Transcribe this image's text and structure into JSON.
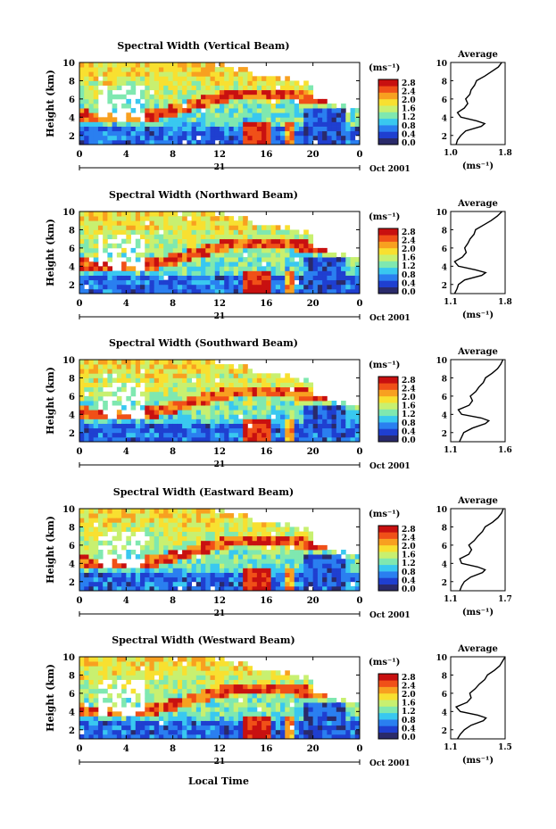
{
  "figure": {
    "xlabel": "Local Time",
    "date_label": "Oct 2001",
    "day_label": "21",
    "ylabel": "Height (km)",
    "colorbar_unit": "(ms⁻¹)",
    "avg_title": "Average",
    "avg_unit": "(ms⁻¹)",
    "x_ticks": [
      "0",
      "4",
      "8",
      "12",
      "16",
      "20",
      "0"
    ],
    "y_ticks": [
      "2",
      "4",
      "6",
      "8",
      "10"
    ],
    "colorbar_ticks": [
      "0.0",
      "0.4",
      "0.8",
      "1.2",
      "1.6",
      "2.0",
      "2.4",
      "2.8"
    ],
    "colorscale": [
      "#2a2a6a",
      "#1f3fd0",
      "#2a7ff0",
      "#39c8f0",
      "#7fe8b0",
      "#c8f070",
      "#f8e030",
      "#f8a020",
      "#f05018",
      "#c81010"
    ]
  },
  "chart_data": [
    {
      "type": "heatmap",
      "title": "Spectral Width (Vertical Beam)",
      "xlabel": "Local Time",
      "ylabel": "Height (km)",
      "xlim": [
        0,
        24
      ],
      "ylim": [
        1,
        10
      ],
      "clim": [
        0.0,
        2.8
      ],
      "profile": {
        "title": "Average",
        "xlabel": "(ms⁻¹)",
        "xlim": [
          1.0,
          1.8
        ],
        "x_ticks": [
          "1.0",
          "1.8"
        ],
        "height_km": [
          1.0,
          1.5,
          2.0,
          2.5,
          3.0,
          3.3,
          3.6,
          4.0,
          4.5,
          5.0,
          5.5,
          6.0,
          6.5,
          7.0,
          7.5,
          8.0,
          8.5,
          9.0,
          9.5,
          10.0
        ],
        "values": [
          1.08,
          1.1,
          1.15,
          1.22,
          1.45,
          1.5,
          1.38,
          1.15,
          1.1,
          1.2,
          1.25,
          1.22,
          1.28,
          1.3,
          1.35,
          1.38,
          1.5,
          1.6,
          1.7,
          1.75
        ]
      }
    },
    {
      "type": "heatmap",
      "title": "Spectral Width (Northward Beam)",
      "xlabel": "Local Time",
      "ylabel": "Height (km)",
      "xlim": [
        0,
        24
      ],
      "ylim": [
        1,
        10
      ],
      "clim": [
        0.0,
        2.8
      ],
      "profile": {
        "title": "Average",
        "xlabel": "(ms⁻¹)",
        "xlim": [
          1.1,
          1.8
        ],
        "x_ticks": [
          "1.1",
          "1.8"
        ],
        "height_km": [
          1.0,
          1.5,
          2.0,
          2.5,
          3.0,
          3.3,
          3.6,
          4.0,
          4.5,
          5.0,
          5.5,
          6.0,
          6.5,
          7.0,
          7.5,
          8.0,
          8.5,
          9.0,
          9.5,
          10.0
        ],
        "values": [
          1.15,
          1.18,
          1.2,
          1.28,
          1.5,
          1.55,
          1.42,
          1.2,
          1.15,
          1.25,
          1.3,
          1.28,
          1.32,
          1.35,
          1.4,
          1.42,
          1.52,
          1.62,
          1.7,
          1.76
        ]
      }
    },
    {
      "type": "heatmap",
      "title": "Spectral Width (Southward Beam)",
      "xlabel": "Local Time",
      "ylabel": "Height (km)",
      "xlim": [
        0,
        24
      ],
      "ylim": [
        1,
        10
      ],
      "clim": [
        0.0,
        2.8
      ],
      "profile": {
        "title": "Average",
        "xlabel": "",
        "xlim": [
          1.1,
          1.6
        ],
        "x_ticks": [
          "1.1",
          "1.6"
        ],
        "height_km": [
          1.0,
          1.5,
          2.0,
          2.5,
          3.0,
          3.3,
          3.6,
          4.0,
          4.5,
          5.0,
          5.5,
          6.0,
          6.5,
          7.0,
          7.5,
          8.0,
          8.5,
          9.0,
          9.5,
          10.0
        ],
        "values": [
          1.18,
          1.2,
          1.22,
          1.3,
          1.42,
          1.45,
          1.38,
          1.2,
          1.17,
          1.27,
          1.3,
          1.28,
          1.33,
          1.36,
          1.4,
          1.42,
          1.48,
          1.53,
          1.56,
          1.58
        ]
      }
    },
    {
      "type": "heatmap",
      "title": "Spectral Width (Eastward Beam)",
      "xlabel": "Local Time",
      "ylabel": "Height (km)",
      "xlim": [
        0,
        24
      ],
      "ylim": [
        1,
        10
      ],
      "clim": [
        0.0,
        2.8
      ],
      "profile": {
        "title": "Average",
        "xlabel": "(ms⁻¹)",
        "xlim": [
          1.1,
          1.7
        ],
        "x_ticks": [
          "1.1",
          "1.7"
        ],
        "height_km": [
          1.0,
          1.5,
          2.0,
          2.5,
          3.0,
          3.3,
          3.6,
          4.0,
          4.5,
          5.0,
          5.5,
          6.0,
          6.5,
          7.0,
          7.5,
          8.0,
          8.5,
          9.0,
          9.5,
          10.0
        ],
        "values": [
          1.2,
          1.22,
          1.25,
          1.32,
          1.45,
          1.48,
          1.4,
          1.22,
          1.2,
          1.3,
          1.33,
          1.3,
          1.36,
          1.4,
          1.45,
          1.48,
          1.56,
          1.62,
          1.66,
          1.68
        ]
      }
    },
    {
      "type": "heatmap",
      "title": "Spectral Width (Westward Beam)",
      "xlabel": "Local Time",
      "ylabel": "Height (km)",
      "xlim": [
        0,
        24
      ],
      "ylim": [
        1,
        10
      ],
      "clim": [
        0.0,
        2.8
      ],
      "profile": {
        "title": "Average",
        "xlabel": "(ms⁻¹)",
        "xlim": [
          1.1,
          1.5
        ],
        "x_ticks": [
          "1.1",
          "1.5"
        ],
        "height_km": [
          1.0,
          1.5,
          2.0,
          2.5,
          3.0,
          3.3,
          3.6,
          4.0,
          4.5,
          5.0,
          5.5,
          6.0,
          6.5,
          7.0,
          7.5,
          8.0,
          8.5,
          9.0,
          9.5,
          10.0
        ],
        "values": [
          1.15,
          1.17,
          1.2,
          1.25,
          1.34,
          1.36,
          1.3,
          1.17,
          1.14,
          1.22,
          1.25,
          1.24,
          1.28,
          1.31,
          1.35,
          1.37,
          1.42,
          1.46,
          1.48,
          1.5
        ]
      }
    }
  ]
}
